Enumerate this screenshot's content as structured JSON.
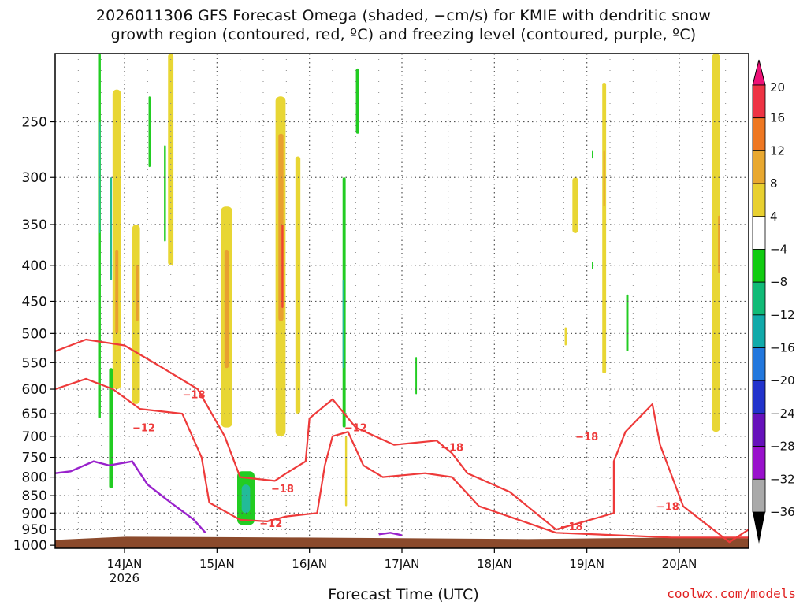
{
  "title_line1": "2026011306 GFS Forecast Omega (shaded, −cm/s) for KMIE with dendritic snow",
  "title_line2": "growth region (contoured, red, ºC) and freezing level (contoured, purple, ºC)",
  "xlabel": "Forecast Time (UTC)",
  "credit": "coolwx.com/models",
  "chart_data": {
    "type": "heatmap",
    "xlabel": "Forecast Time (UTC)",
    "ylabel": "",
    "x_ticks": [
      {
        "label": "14JAN",
        "sub": "2026",
        "hour": 18
      },
      {
        "label": "15JAN",
        "sub": "",
        "hour": 42
      },
      {
        "label": "16JAN",
        "sub": "",
        "hour": 66
      },
      {
        "label": "17JAN",
        "sub": "",
        "hour": 90
      },
      {
        "label": "18JAN",
        "sub": "",
        "hour": 114
      },
      {
        "label": "19JAN",
        "sub": "",
        "hour": 138
      },
      {
        "label": "20JAN",
        "sub": "",
        "hour": 162
      }
    ],
    "x_range_hours": [
      0,
      180
    ],
    "y_ticks": [
      250,
      300,
      350,
      400,
      450,
      500,
      550,
      600,
      650,
      700,
      750,
      800,
      850,
      900,
      950,
      1000
    ],
    "y_range_hpa": [
      200,
      1010
    ],
    "y_scale": "log",
    "grid": true,
    "colorbar": {
      "labels": [
        "20",
        "16",
        "12",
        "8",
        "4",
        "−4",
        "−8",
        "−12",
        "−16",
        "−20",
        "−24",
        "−28",
        "−32",
        "−36"
      ],
      "colors": [
        "#ee3344",
        "#ee7722",
        "#e8a830",
        "#e8d030",
        "#ffffff",
        "#11cc11",
        "#11bb77",
        "#11aaaa",
        "#2277dd",
        "#2233cc",
        "#6611bb",
        "#9911cc",
        "#aaaaaa"
      ],
      "top_color": "#ee1177",
      "bottom_color": "#000000"
    },
    "omega_features": [
      {
        "type": "yellow",
        "hour": 16.0,
        "p0": 225,
        "p1": 600,
        "w": 2.2
      },
      {
        "type": "orange",
        "hour": 16.0,
        "p0": 380,
        "p1": 500,
        "w": 0.8
      },
      {
        "type": "yellow",
        "hour": 21.0,
        "p0": 350,
        "p1": 630,
        "w": 2.0
      },
      {
        "type": "orange",
        "hour": 21.3,
        "p0": 400,
        "p1": 480,
        "w": 0.7
      },
      {
        "type": "yellow",
        "hour": 30.0,
        "p0": 200,
        "p1": 400,
        "w": 1.4
      },
      {
        "type": "yellow",
        "hour": 44.5,
        "p0": 330,
        "p1": 680,
        "w": 3.0
      },
      {
        "type": "orange",
        "hour": 44.5,
        "p0": 380,
        "p1": 560,
        "w": 1.1
      },
      {
        "type": "yellow",
        "hour": 58.5,
        "p0": 230,
        "p1": 700,
        "w": 2.6
      },
      {
        "type": "orange",
        "hour": 58.6,
        "p0": 260,
        "p1": 480,
        "w": 1.3
      },
      {
        "type": "red",
        "hour": 59.0,
        "p0": 350,
        "p1": 460,
        "w": 0.5
      },
      {
        "type": "yellow",
        "hour": 63.0,
        "p0": 280,
        "p1": 650,
        "w": 1.3
      },
      {
        "type": "yellow",
        "hour": 75.5,
        "p0": 700,
        "p1": 880,
        "w": 0.5
      },
      {
        "type": "green",
        "hour": 11.5,
        "p0": 200,
        "p1": 660,
        "w": 0.7
      },
      {
        "type": "teal",
        "hour": 11.5,
        "p0": 250,
        "p1": 360,
        "w": 0.5
      },
      {
        "type": "green",
        "hour": 14.5,
        "p0": 560,
        "p1": 830,
        "w": 1.0
      },
      {
        "type": "teal",
        "hour": 14.5,
        "p0": 300,
        "p1": 420,
        "w": 0.5
      },
      {
        "type": "green",
        "hour": 24.5,
        "p0": 230,
        "p1": 290,
        "w": 0.5
      },
      {
        "type": "green",
        "hour": 28.5,
        "p0": 270,
        "p1": 370,
        "w": 0.5
      },
      {
        "type": "green",
        "hour": 49.5,
        "p0": 785,
        "p1": 935,
        "w": 4.5
      },
      {
        "type": "teal",
        "hour": 49.5,
        "p0": 820,
        "p1": 900,
        "w": 2.2
      },
      {
        "type": "green",
        "hour": 75.0,
        "p0": 300,
        "p1": 680,
        "w": 0.8
      },
      {
        "type": "teal",
        "hour": 74.8,
        "p0": 420,
        "p1": 560,
        "w": 0.4
      },
      {
        "type": "green",
        "hour": 78.5,
        "p0": 210,
        "p1": 260,
        "w": 0.9
      },
      {
        "type": "green",
        "hour": 93.7,
        "p0": 540,
        "p1": 610,
        "w": 0.4
      },
      {
        "type": "yellow",
        "hour": 135.0,
        "p0": 300,
        "p1": 360,
        "w": 1.5
      },
      {
        "type": "yellow",
        "hour": 142.5,
        "p0": 220,
        "p1": 570,
        "w": 1.0
      },
      {
        "type": "orange",
        "hour": 142.5,
        "p0": 275,
        "p1": 330,
        "w": 0.4
      },
      {
        "type": "yellow",
        "hour": 132.5,
        "p0": 490,
        "p1": 520,
        "w": 0.5
      },
      {
        "type": "green",
        "hour": 148.5,
        "p0": 440,
        "p1": 530,
        "w": 0.6
      },
      {
        "type": "green",
        "hour": 139.5,
        "p0": 275,
        "p1": 282,
        "w": 0.4
      },
      {
        "type": "green",
        "hour": 139.5,
        "p0": 395,
        "p1": 405,
        "w": 0.4
      },
      {
        "type": "yellow",
        "hour": 171.5,
        "p0": 200,
        "p1": 690,
        "w": 2.2
      },
      {
        "type": "orange",
        "hour": 172.3,
        "p0": 340,
        "p1": 410,
        "w": 0.5
      }
    ],
    "contours_red": [
      {
        "name": "−18",
        "points": [
          [
            0,
            530
          ],
          [
            8,
            510
          ],
          [
            18,
            520
          ],
          [
            28,
            560
          ],
          [
            37,
            600
          ],
          [
            44,
            700
          ],
          [
            48,
            800
          ],
          [
            57,
            810
          ],
          [
            60,
            790
          ],
          [
            65,
            760
          ],
          [
            66,
            660
          ],
          [
            72,
            620
          ],
          [
            78,
            680
          ],
          [
            88,
            720
          ],
          [
            99,
            710
          ],
          [
            103,
            740
          ],
          [
            107,
            790
          ],
          [
            118,
            840
          ],
          [
            130,
            950
          ],
          [
            145,
            900
          ],
          [
            145,
            760
          ],
          [
            148,
            690
          ],
          [
            155,
            630
          ],
          [
            157,
            720
          ],
          [
            163,
            880
          ],
          [
            175,
            990
          ],
          [
            180,
            950
          ]
        ]
      },
      {
        "name": "−12",
        "points": [
          [
            0,
            600
          ],
          [
            8,
            580
          ],
          [
            15,
            600
          ],
          [
            22,
            640
          ],
          [
            33,
            650
          ],
          [
            38,
            750
          ],
          [
            40,
            870
          ],
          [
            48,
            920
          ],
          [
            55,
            925
          ],
          [
            60,
            910
          ],
          [
            68,
            900
          ],
          [
            70,
            770
          ],
          [
            72,
            700
          ],
          [
            76,
            690
          ],
          [
            80,
            770
          ],
          [
            85,
            800
          ],
          [
            96,
            790
          ],
          [
            103,
            800
          ],
          [
            110,
            880
          ],
          [
            130,
            960
          ],
          [
            160,
            975
          ],
          [
            180,
            975
          ]
        ]
      }
    ],
    "contour_labels": [
      {
        "text": "−18",
        "hour": 36,
        "p": 610
      },
      {
        "text": "−12",
        "hour": 23,
        "p": 680
      },
      {
        "text": "−18",
        "hour": 59,
        "p": 830
      },
      {
        "text": "−12",
        "hour": 56,
        "p": 930
      },
      {
        "text": "−12",
        "hour": 78,
        "p": 680
      },
      {
        "text": "−18",
        "hour": 103,
        "p": 725
      },
      {
        "text": "−18",
        "hour": 138,
        "p": 700
      },
      {
        "text": "−18",
        "hour": 134,
        "p": 940
      },
      {
        "text": "−18",
        "hour": 159,
        "p": 880
      }
    ],
    "contour_purple": {
      "name": "0",
      "segments": [
        [
          [
            0,
            790
          ],
          [
            4,
            785
          ],
          [
            10,
            760
          ],
          [
            14,
            770
          ],
          [
            20,
            760
          ],
          [
            24,
            820
          ],
          [
            30,
            870
          ],
          [
            36,
            920
          ],
          [
            39,
            960
          ]
        ],
        [
          [
            84,
            965
          ],
          [
            87,
            960
          ],
          [
            90,
            968
          ]
        ]
      ]
    },
    "ground": {
      "color": "#8b4a2c",
      "p_top": 975
    }
  }
}
